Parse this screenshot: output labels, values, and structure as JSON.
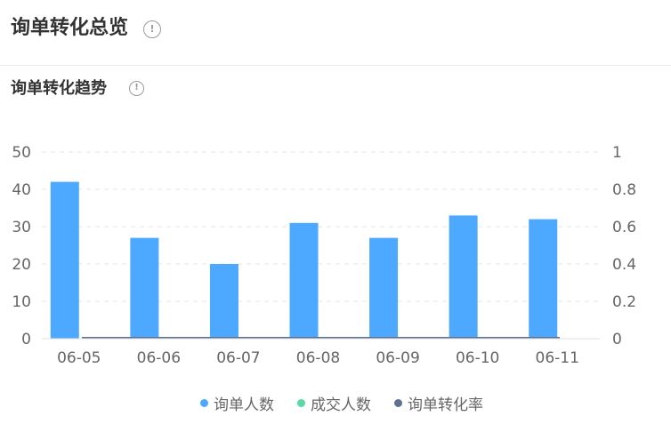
{
  "header": {
    "title": "询单转化总览",
    "info_glyph": "!"
  },
  "section": {
    "title": "询单转化趋势",
    "info_glyph": "!"
  },
  "colors": {
    "inquiries": "#4da9ff",
    "deals": "#5ad8a6",
    "conversion_rate": "#5d7092",
    "grid": "#e5e5e5",
    "axis_text": "#666666"
  },
  "chart_data": {
    "type": "bar",
    "categories": [
      "06-05",
      "06-06",
      "06-07",
      "06-08",
      "06-09",
      "06-10",
      "06-11"
    ],
    "series": [
      {
        "name": "询单人数",
        "type": "bar",
        "axis": "left",
        "values": [
          42,
          27,
          20,
          31,
          27,
          33,
          32
        ]
      },
      {
        "name": "成交人数",
        "type": "bar",
        "axis": "left",
        "values": [
          0,
          0,
          0,
          0,
          0,
          0,
          0
        ]
      },
      {
        "name": "询单转化率",
        "type": "line",
        "axis": "right",
        "values": [
          0,
          0,
          0,
          0,
          0,
          0,
          0
        ]
      }
    ],
    "y_left": {
      "ticks": [
        "0",
        "10",
        "20",
        "30",
        "40",
        "50"
      ],
      "min": 0,
      "max": 50
    },
    "y_right": {
      "ticks": [
        "0",
        "0.2",
        "0.4",
        "0.6",
        "0.8",
        "1"
      ],
      "min": 0,
      "max": 1
    },
    "grid": true,
    "legend_position": "bottom"
  },
  "legend": {
    "items": [
      {
        "label": "询单人数",
        "color": "#4da9ff"
      },
      {
        "label": "成交人数",
        "color": "#5ad8a6"
      },
      {
        "label": "询单转化率",
        "color": "#5d7092"
      }
    ]
  }
}
